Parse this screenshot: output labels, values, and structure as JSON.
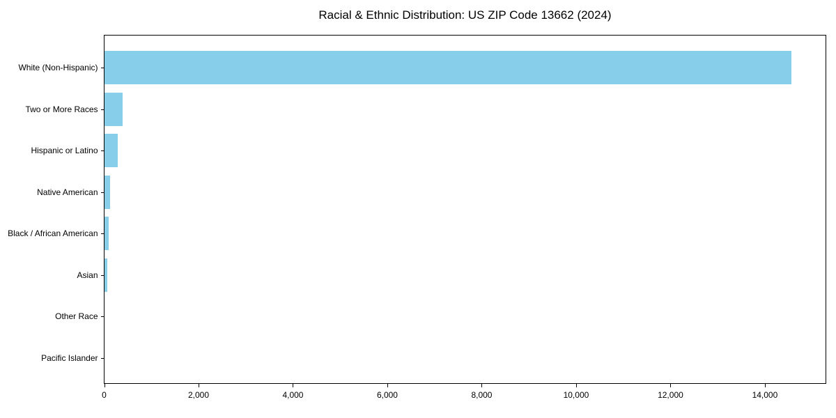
{
  "chart_data": {
    "type": "bar",
    "orientation": "horizontal",
    "title": "Racial & Ethnic Distribution: US ZIP Code 13662 (2024)",
    "categories": [
      "White (Non-Hispanic)",
      "Two or More Races",
      "Hispanic or Latino",
      "Native American",
      "Black / African American",
      "Asian",
      "Other Race",
      "Pacific Islander"
    ],
    "values": [
      14560,
      380,
      280,
      120,
      85,
      55,
      0,
      0
    ],
    "xlabel": "",
    "ylabel": "",
    "xlim": [
      0,
      15300
    ],
    "x_ticks": [
      0,
      2000,
      4000,
      6000,
      8000,
      10000,
      12000,
      14000
    ],
    "x_tick_labels": [
      "0",
      "2,000",
      "4,000",
      "6,000",
      "8,000",
      "10,000",
      "12,000",
      "14,000"
    ],
    "bar_color": "#87CEEB",
    "axis_color": "#000000",
    "grid": false,
    "legend": null
  }
}
